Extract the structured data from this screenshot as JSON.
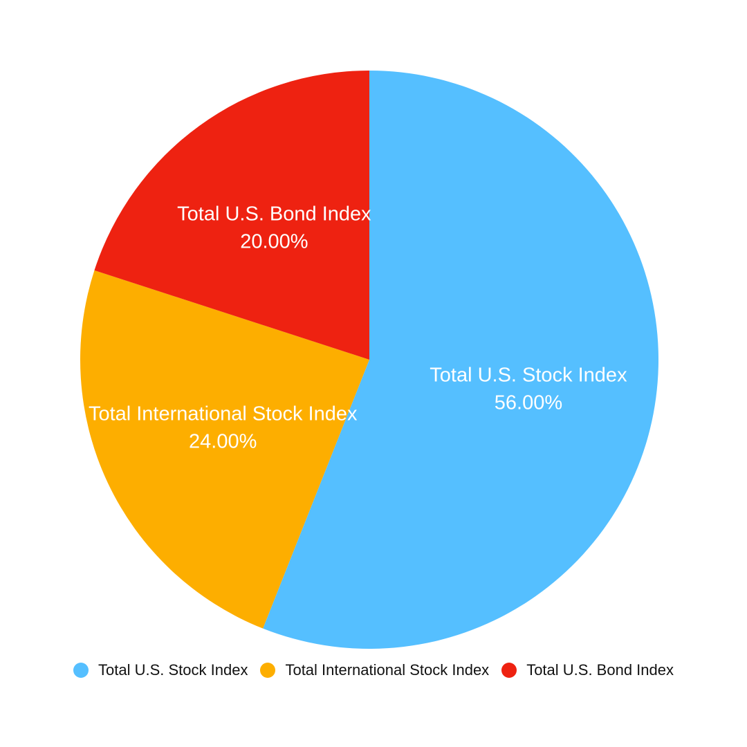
{
  "chart_data": {
    "type": "pie",
    "categories": [
      "Total U.S. Stock Index",
      "Total International Stock Index",
      "Total U.S. Bond Index"
    ],
    "values": [
      56,
      24,
      20
    ],
    "value_labels": [
      "56.00%",
      "24.00%",
      "20.00%"
    ],
    "colors": [
      "#55bfff",
      "#fdae00",
      "#ee2211"
    ]
  }
}
